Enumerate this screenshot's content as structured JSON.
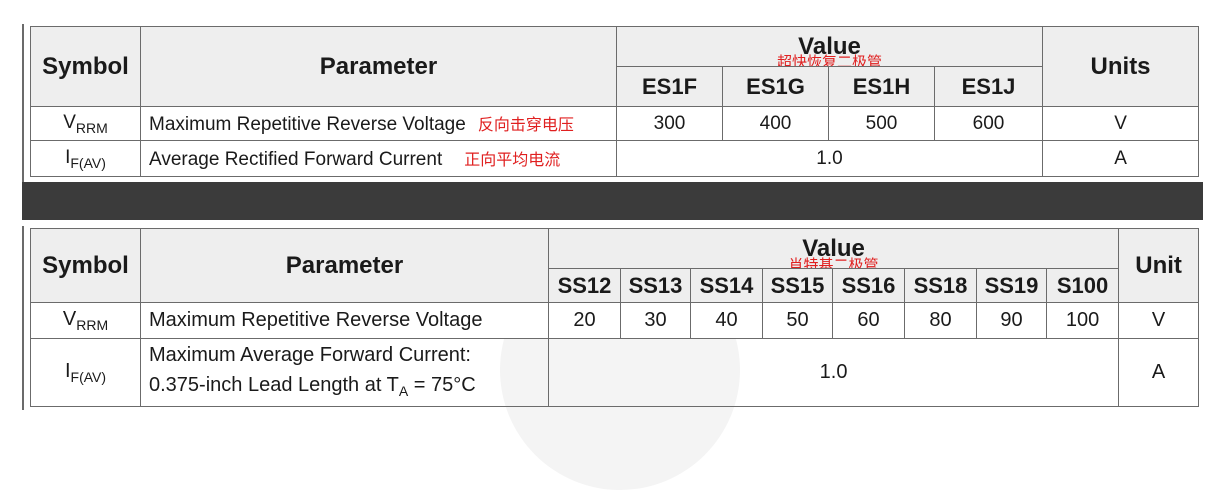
{
  "table1": {
    "headers": {
      "symbol": "Symbol",
      "parameter": "Parameter",
      "value": "Value",
      "units": "Units"
    },
    "value_annotation": "超快恢复二极管",
    "parts": [
      "ES1F",
      "ES1G",
      "ES1H",
      "ES1J"
    ],
    "rows": [
      {
        "symbol_main": "V",
        "symbol_sub": "RRM",
        "parameter": "Maximum Repetitive Reverse Voltage",
        "annotation": "反向击穿电压",
        "values": [
          "300",
          "400",
          "500",
          "600"
        ],
        "unit": "V"
      },
      {
        "symbol_main": "I",
        "symbol_sub": "F(AV)",
        "parameter": "Average Rectified Forward Current",
        "annotation": "正向平均电流",
        "value": "1.0",
        "unit": "A"
      }
    ]
  },
  "table2": {
    "headers": {
      "symbol": "Symbol",
      "parameter": "Parameter",
      "value": "Value",
      "unit": "Unit"
    },
    "value_annotation": "肖特基二极管",
    "parts": [
      "SS12",
      "SS13",
      "SS14",
      "SS15",
      "SS16",
      "SS18",
      "SS19",
      "S100"
    ],
    "rows": [
      {
        "symbol_main": "V",
        "symbol_sub": "RRM",
        "parameter": "Maximum Repetitive Reverse Voltage",
        "values": [
          "20",
          "30",
          "40",
          "50",
          "60",
          "80",
          "90",
          "100"
        ],
        "unit": "V"
      },
      {
        "symbol_main": "I",
        "symbol_sub": "F(AV)",
        "parameter_line1": "Maximum Average Forward Current:",
        "parameter_line2_pre": "0.375-inch Lead Length at T",
        "parameter_line2_sub": "A",
        "parameter_line2_post": " = 75°C",
        "value": "1.0",
        "unit": "A"
      }
    ]
  }
}
